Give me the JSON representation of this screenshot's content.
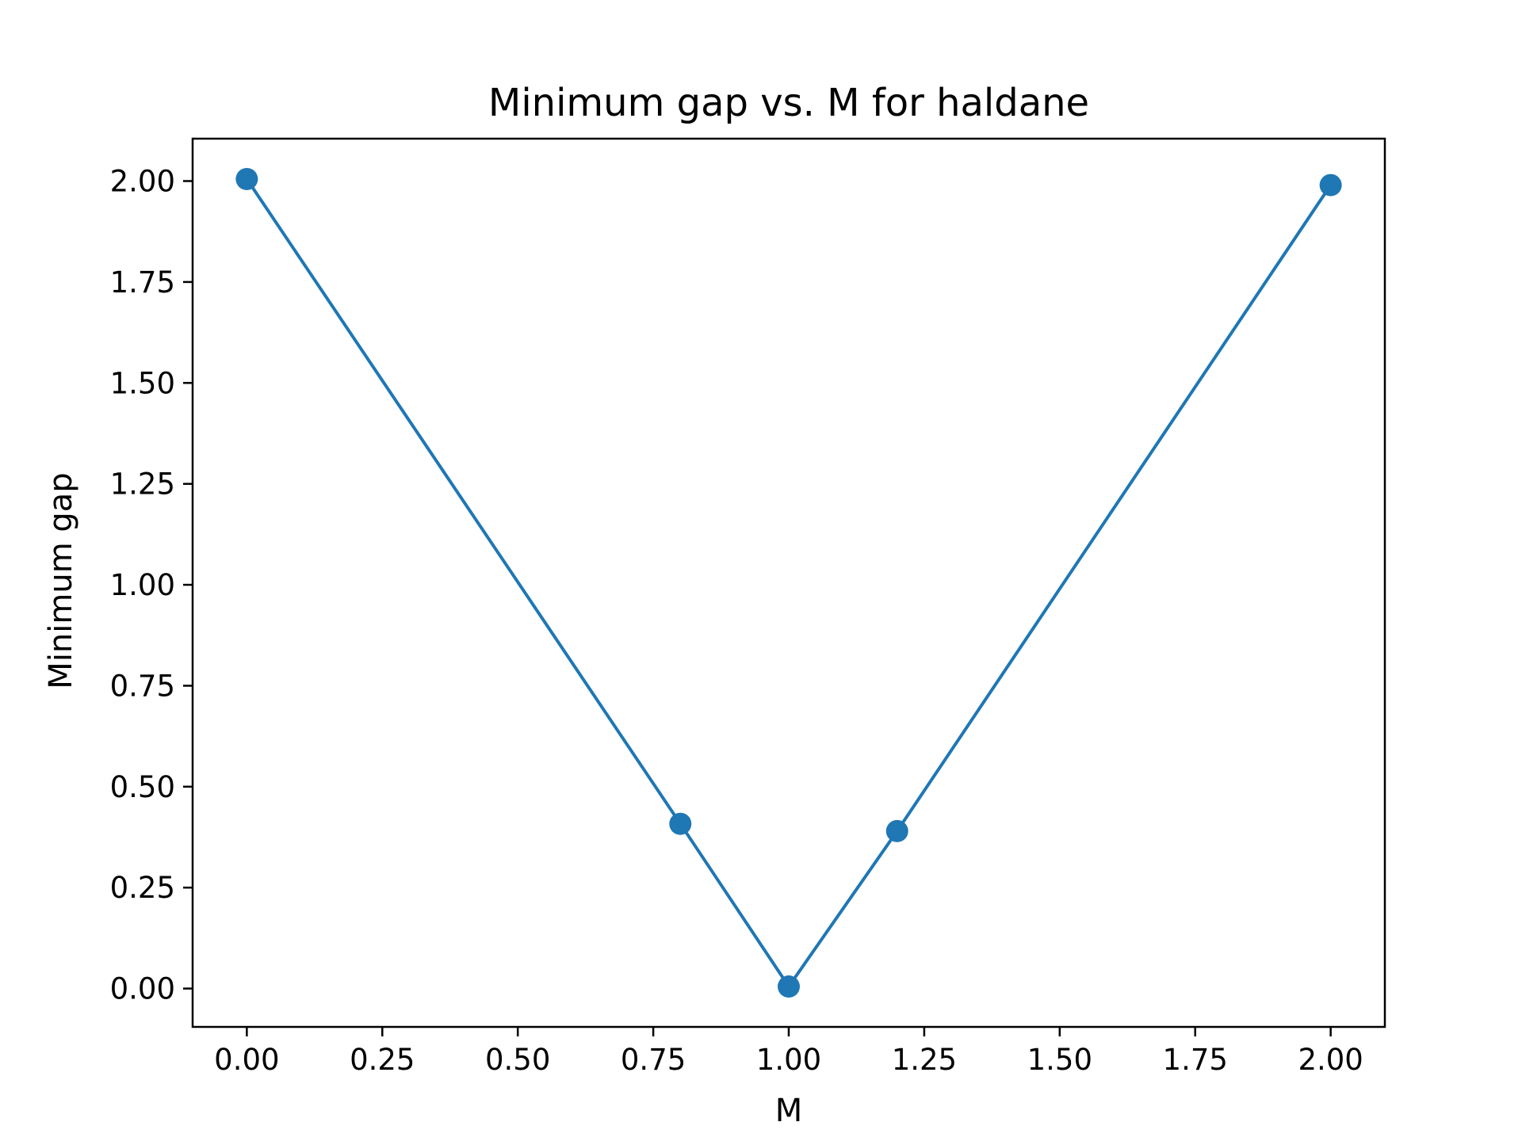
{
  "chart_data": {
    "type": "line",
    "title": "Minimum gap vs. M for haldane",
    "xlabel": "M",
    "ylabel": "Minimum gap",
    "xlim": [
      -0.1,
      2.1
    ],
    "ylim": [
      -0.095,
      2.105
    ],
    "x_ticks": [
      "0.00",
      "0.25",
      "0.50",
      "0.75",
      "1.00",
      "1.25",
      "1.50",
      "1.75",
      "2.00"
    ],
    "y_ticks": [
      "0.00",
      "0.25",
      "0.50",
      "0.75",
      "1.00",
      "1.25",
      "1.50",
      "1.75",
      "2.00"
    ],
    "grid": false,
    "series": [
      {
        "color": "#1f77b4",
        "marker": "circle",
        "x": [
          0.0,
          0.8,
          1.0,
          1.2,
          2.0
        ],
        "y": [
          2.005,
          0.408,
          0.005,
          0.39,
          1.99
        ]
      }
    ]
  }
}
